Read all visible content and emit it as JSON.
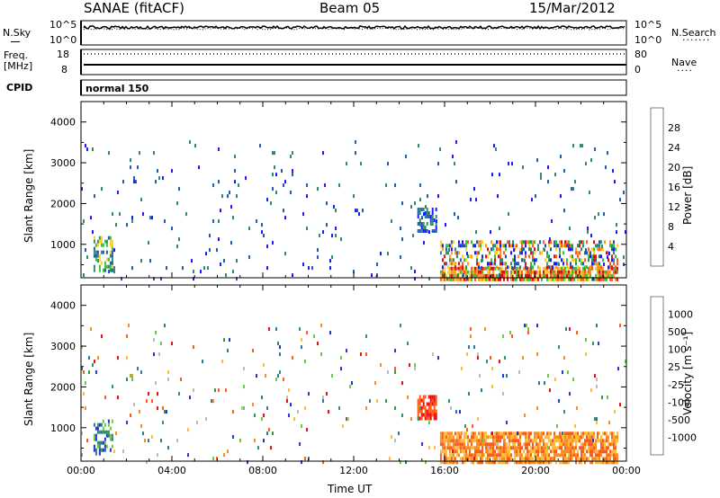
{
  "header": {
    "station": "SANAE (fitACF)",
    "beam": "Beam 05",
    "date": "15/Mar/2012"
  },
  "sky_panel": {
    "left_label": "N.Sky",
    "right_label": "N.Search",
    "left_ticks": [
      "10^5",
      "10^0"
    ],
    "right_ticks": [
      "10^5",
      "10^0"
    ]
  },
  "freq_panel": {
    "left_label_1": "Freq.",
    "left_label_2": "[MHz]",
    "right_label": "Nave",
    "left_ticks": [
      "18",
      "8"
    ],
    "right_ticks": [
      "80",
      "0"
    ]
  },
  "cpid_panel": {
    "label": "CPID",
    "mode": "normal 150"
  },
  "chart_data": [
    {
      "type": "heatmap",
      "name": "Power",
      "xlabel": "",
      "ylabel": "Slant Range [km]",
      "xlim": [
        0,
        24
      ],
      "ylim": [
        180,
        4500
      ],
      "yticks": [
        "1000",
        "2000",
        "3000",
        "4000"
      ],
      "colorbar": {
        "label": "Power [dB]",
        "ticks": [
          "4",
          "8",
          "12",
          "16",
          "20",
          "24",
          "28"
        ],
        "colors": [
          "#1a1aff",
          "#1f5ab0",
          "#2e8b6e",
          "#3fbf3f",
          "#ffd21f",
          "#ff9a1f",
          "#ff5a1f",
          "#e01010"
        ]
      },
      "regions": [
        {
          "t": [
            0.55,
            1.4
          ],
          "r": [
            400,
            1200
          ],
          "level": "mid",
          "density": 0.55
        },
        {
          "t": [
            14.8,
            15.6
          ],
          "r": [
            1300,
            1900
          ],
          "level": "low",
          "density": 0.55
        },
        {
          "t": [
            15.8,
            23.6
          ],
          "r": [
            180,
            450
          ],
          "level": "high",
          "density": 0.85
        },
        {
          "t": [
            15.8,
            23.6
          ],
          "r": [
            450,
            1100
          ],
          "level": "mixed",
          "density": 0.45
        },
        {
          "t": [
            0.0,
            24.0
          ],
          "r": [
            180,
            3550
          ],
          "level": "low",
          "density": 0.025
        }
      ]
    },
    {
      "type": "heatmap",
      "name": "Velocity",
      "xlabel": "Time UT",
      "ylabel": "Slant Range [km]",
      "xlim": [
        0,
        24
      ],
      "ylim": [
        180,
        4500
      ],
      "xticks": [
        "00:00",
        "04:00",
        "08:00",
        "12:00",
        "16:00",
        "20:00",
        "00:00"
      ],
      "yticks": [
        "1000",
        "2000",
        "3000",
        "4000"
      ],
      "colorbar": {
        "label": "Velocity [m s⁻¹]",
        "ticks": [
          "1000",
          "500",
          "100",
          "25",
          "-25",
          "-100",
          "-500",
          "-1000"
        ],
        "colors": [
          "#2233cc",
          "#2a7a9a",
          "#2f9a4a",
          "#66cc44",
          "#bbbbbb",
          "#ffbb33",
          "#ff8c1a",
          "#ff5a1a",
          "#e01010"
        ]
      },
      "regions": [
        {
          "t": [
            0.55,
            1.4
          ],
          "r": [
            400,
            1200
          ],
          "level": "positive",
          "density": 0.55
        },
        {
          "t": [
            14.8,
            15.6
          ],
          "r": [
            1200,
            1800
          ],
          "level": "strong-negative",
          "density": 0.7
        },
        {
          "t": [
            15.8,
            23.6
          ],
          "r": [
            180,
            900
          ],
          "level": "negative",
          "density": 0.8
        },
        {
          "t": [
            0.0,
            24.0
          ],
          "r": [
            180,
            3550
          ],
          "level": "mixed",
          "density": 0.025
        }
      ]
    }
  ]
}
